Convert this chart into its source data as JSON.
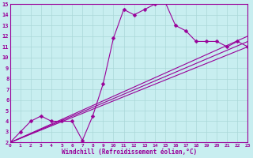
{
  "bg_color": "#c8eef0",
  "line_color": "#990099",
  "grid_color": "#aad8d8",
  "xlabel": "Windchill (Refroidissement éolien,°C)",
  "ylim": [
    2,
    15
  ],
  "xlim": [
    0,
    23
  ],
  "yticks": [
    2,
    3,
    4,
    5,
    6,
    7,
    8,
    9,
    10,
    11,
    12,
    13,
    14,
    15
  ],
  "xticks": [
    0,
    1,
    2,
    3,
    4,
    5,
    6,
    7,
    8,
    9,
    10,
    11,
    12,
    13,
    14,
    15,
    16,
    17,
    18,
    19,
    20,
    21,
    22,
    23
  ],
  "series": [
    {
      "x": [
        0,
        1,
        2,
        3,
        4,
        5,
        6,
        7,
        8,
        9,
        10,
        11,
        12,
        13,
        14,
        15,
        16,
        17,
        18,
        19,
        20,
        21,
        22,
        23
      ],
      "y": [
        2,
        3,
        4,
        4.5,
        4,
        4,
        4,
        2.2,
        4.5,
        7.5,
        11.8,
        14.5,
        14.0,
        14.5,
        15.0,
        15.2,
        13.0,
        12.5,
        11.5,
        11.5,
        11.5,
        11.0,
        11.5,
        11.0
      ],
      "marker": "D",
      "markersize": 2.5,
      "linewidth": 0.8
    },
    {
      "x": [
        0,
        23
      ],
      "y": [
        2,
        11.0
      ],
      "marker": null,
      "markersize": 0,
      "linewidth": 0.8
    },
    {
      "x": [
        0,
        23
      ],
      "y": [
        2,
        11.5
      ],
      "marker": null,
      "markersize": 0,
      "linewidth": 0.8
    },
    {
      "x": [
        0,
        23
      ],
      "y": [
        2,
        12.0
      ],
      "marker": null,
      "markersize": 0,
      "linewidth": 0.8
    }
  ]
}
